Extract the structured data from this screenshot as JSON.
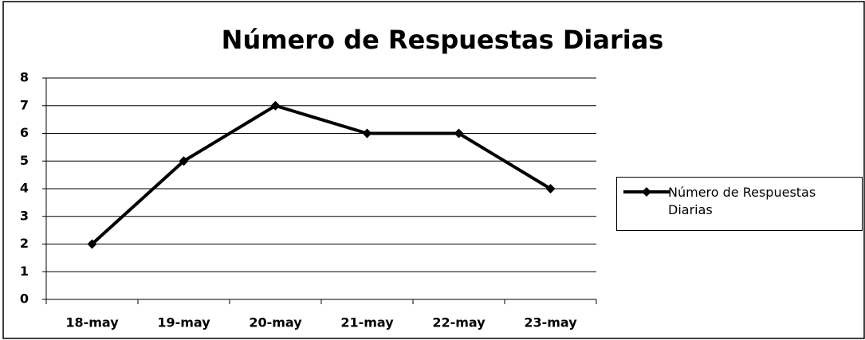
{
  "chart_data": {
    "type": "line",
    "title": "Número de Respuestas Diarias",
    "categories": [
      "18-may",
      "19-may",
      "20-may",
      "21-may",
      "22-may",
      "23-may"
    ],
    "series": [
      {
        "name": "Número de Respuestas Diarias",
        "color": "#000000",
        "values": [
          2,
          5,
          7,
          6,
          6,
          4
        ]
      }
    ],
    "ylim": [
      0,
      8
    ],
    "yticks": [
      0,
      1,
      2,
      3,
      4,
      5,
      6,
      7,
      8
    ],
    "grid": true,
    "legend": "right",
    "marker": "diamond"
  }
}
